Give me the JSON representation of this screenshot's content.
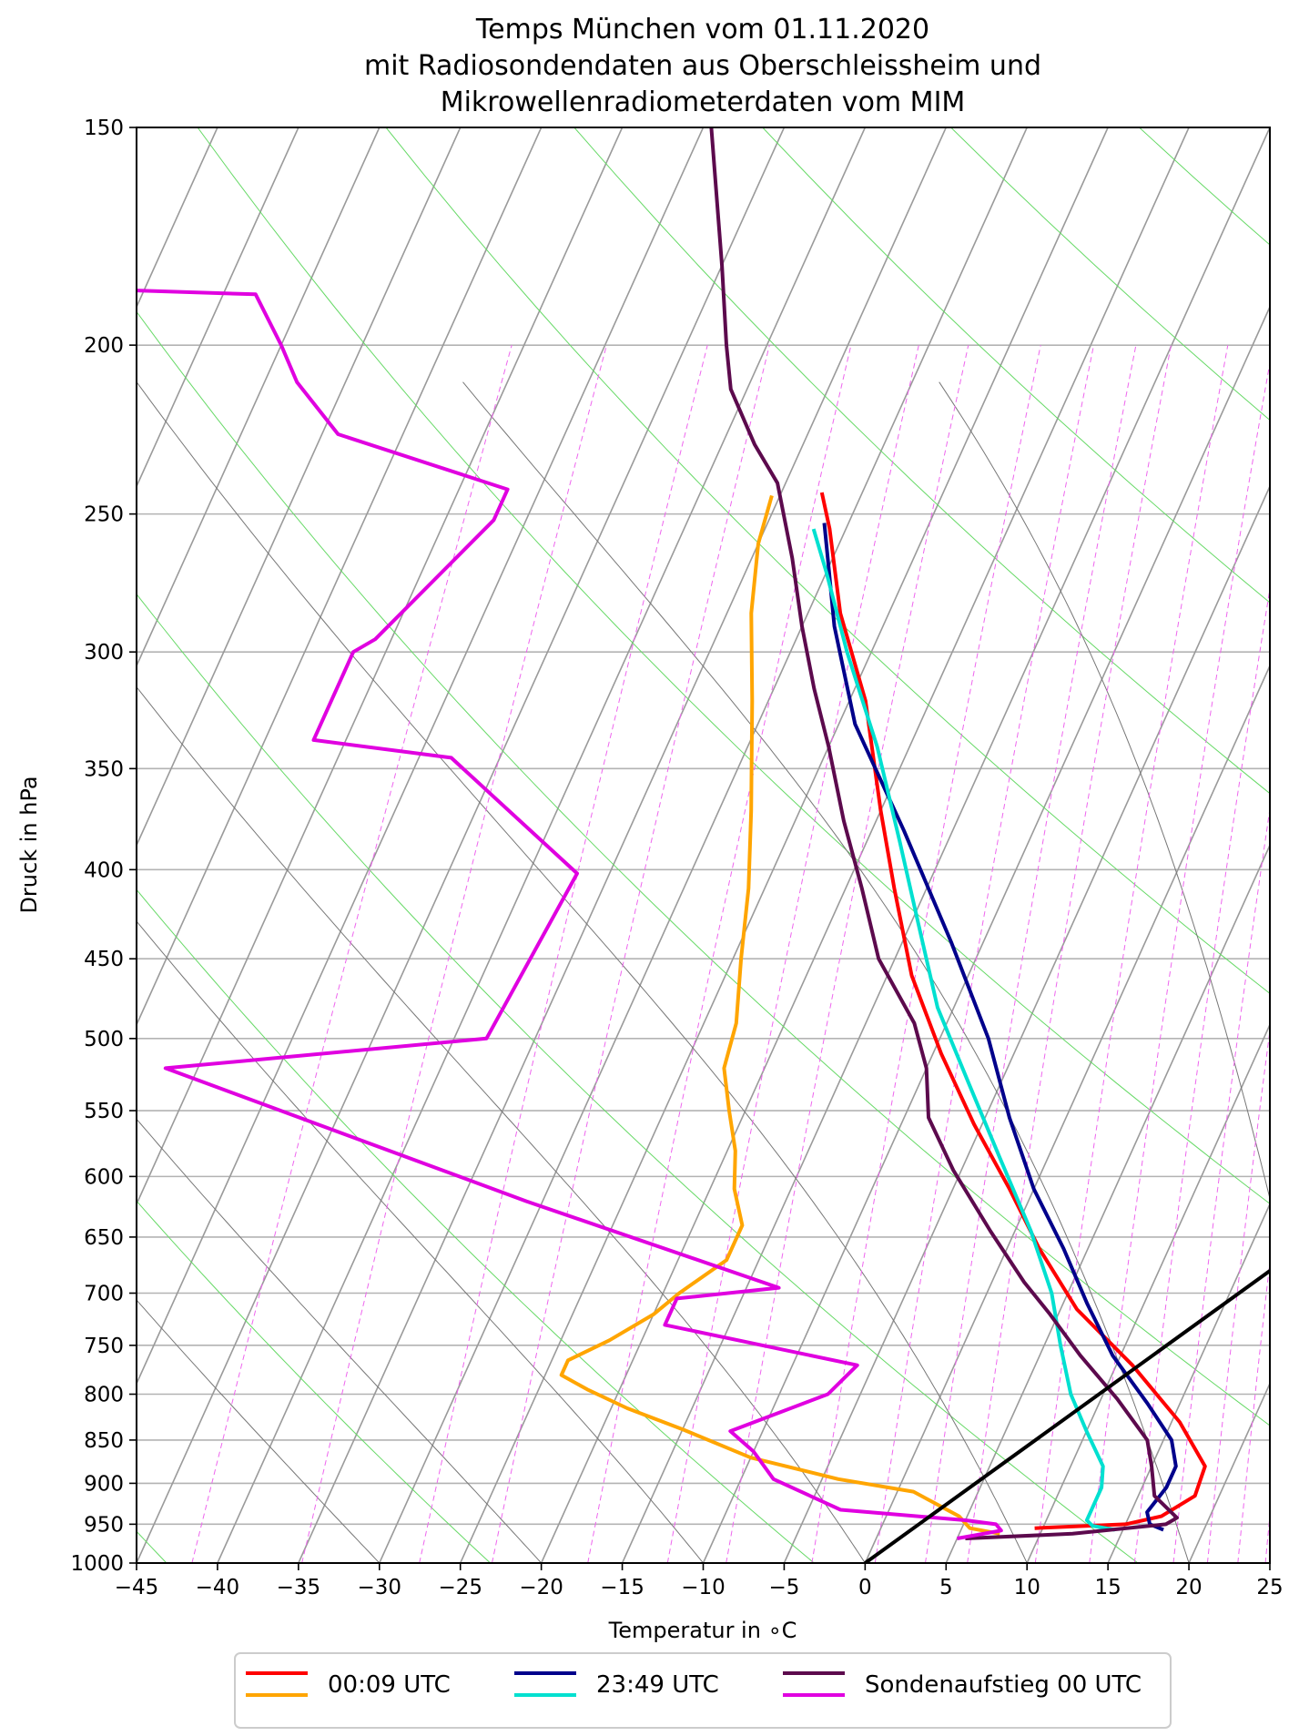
{
  "chart_data": {
    "type": "line",
    "subtype": "skew-t-log-p",
    "title_lines": [
      "Temps München vom 01.11.2020",
      "mit Radiosondendaten aus Oberschleissheim und",
      "Mikrowellenradiometerdaten vom MIM"
    ],
    "xlabel": "Temperatur in ∘C",
    "ylabel": "Druck in hPa",
    "xlim": [
      -45,
      25
    ],
    "ylim": [
      1000,
      150
    ],
    "y_scale": "log",
    "grid": true,
    "x_ticks": [
      "−45",
      "−40",
      "−35",
      "−30",
      "−25",
      "−20",
      "−15",
      "−10",
      "−5",
      "0",
      "5",
      "10",
      "15",
      "20",
      "25"
    ],
    "y_ticks": [
      "150",
      "200",
      "250",
      "300",
      "350",
      "400",
      "450",
      "500",
      "550",
      "600",
      "650",
      "700",
      "750",
      "800",
      "850",
      "900",
      "950",
      "1000"
    ],
    "legend": {
      "placement": "bottom-center",
      "entries": [
        {
          "label": "00:09 UTC",
          "colors": [
            "#ff0000",
            "#ffa500"
          ]
        },
        {
          "label": "23:49 UTC",
          "colors": [
            "#00008b",
            "#00e0d0"
          ]
        },
        {
          "label": "Sondenaufstieg 00 UTC",
          "colors": [
            "#5c0a4d",
            "#e000e0"
          ]
        }
      ]
    },
    "series": [
      {
        "color": "#ff0000",
        "points": [
          [
            9.5,
            955
          ],
          [
            15,
            950
          ],
          [
            17,
            940
          ],
          [
            18.5,
            915
          ],
          [
            18.3,
            880
          ],
          [
            15.5,
            830
          ],
          [
            11,
            770
          ],
          [
            6,
            715
          ],
          [
            2,
            660
          ],
          [
            -1.5,
            610
          ],
          [
            -5.5,
            560
          ],
          [
            -9.5,
            510
          ],
          [
            -13.5,
            460
          ],
          [
            -17,
            410
          ],
          [
            -20,
            370
          ],
          [
            -24,
            320
          ],
          [
            -28,
            285
          ],
          [
            -31,
            255
          ],
          [
            -32.5,
            243
          ]
        ]
      },
      {
        "color": "#ffa500",
        "points": [
          [
            7.5,
            962
          ],
          [
            5.5,
            955
          ],
          [
            4.5,
            940
          ],
          [
            1,
            910
          ],
          [
            -4,
            895
          ],
          [
            -10,
            870
          ],
          [
            -15,
            838
          ],
          [
            -19,
            815
          ],
          [
            -22,
            795
          ],
          [
            -24,
            780
          ],
          [
            -24,
            765
          ],
          [
            -22,
            745
          ],
          [
            -20,
            720
          ],
          [
            -19,
            700
          ],
          [
            -17,
            670
          ],
          [
            -17,
            640
          ],
          [
            -18.5,
            610
          ],
          [
            -19.5,
            580
          ],
          [
            -21,
            550
          ],
          [
            -22.5,
            520
          ],
          [
            -23,
            490
          ],
          [
            -24.5,
            450
          ],
          [
            -26,
            410
          ],
          [
            -28,
            370
          ],
          [
            -31,
            320
          ],
          [
            -33.5,
            285
          ],
          [
            -35,
            260
          ],
          [
            -35.5,
            244
          ]
        ]
      },
      {
        "color": "#00008b",
        "points": [
          [
            17.5,
            957
          ],
          [
            16.5,
            950
          ],
          [
            16,
            935
          ],
          [
            16.5,
            905
          ],
          [
            16.5,
            880
          ],
          [
            15.5,
            850
          ],
          [
            13,
            810
          ],
          [
            9.5,
            760
          ],
          [
            6.5,
            710
          ],
          [
            3.5,
            660
          ],
          [
            0,
            610
          ],
          [
            -3.5,
            555
          ],
          [
            -7,
            500
          ],
          [
            -12,
            440
          ],
          [
            -18,
            380
          ],
          [
            -24,
            330
          ],
          [
            -28,
            290
          ],
          [
            -30.5,
            263
          ],
          [
            -31.5,
            253
          ]
        ]
      },
      {
        "color": "#00e0d0",
        "points": [
          [
            14.5,
            957
          ],
          [
            13,
            952
          ],
          [
            12.5,
            945
          ],
          [
            12.5,
            930
          ],
          [
            12.5,
            905
          ],
          [
            12,
            880
          ],
          [
            10,
            840
          ],
          [
            8,
            800
          ],
          [
            6,
            750
          ],
          [
            4,
            700
          ],
          [
            1,
            645
          ],
          [
            -3,
            585
          ],
          [
            -7,
            530
          ],
          [
            -11,
            480
          ],
          [
            -14.5,
            430
          ],
          [
            -18,
            385
          ],
          [
            -22,
            340
          ],
          [
            -26.5,
            300
          ],
          [
            -30,
            270
          ],
          [
            -32,
            255
          ]
        ]
      },
      {
        "color": "#5c0a4d",
        "points": [
          [
            5.5,
            968
          ],
          [
            12,
            962
          ],
          [
            17.5,
            950
          ],
          [
            18,
            942
          ],
          [
            16,
            915
          ],
          [
            15,
            880
          ],
          [
            14,
            850
          ],
          [
            11,
            805
          ],
          [
            7.5,
            760
          ],
          [
            4.5,
            720
          ],
          [
            2,
            690
          ],
          [
            -1.5,
            645
          ],
          [
            -5.5,
            595
          ],
          [
            -8.5,
            555
          ],
          [
            -10,
            520
          ],
          [
            -12,
            490
          ],
          [
            -16,
            450
          ],
          [
            -19,
            410
          ],
          [
            -22,
            375
          ],
          [
            -25,
            340
          ],
          [
            -27.5,
            315
          ],
          [
            -30,
            290
          ],
          [
            -32.5,
            265
          ],
          [
            -35.5,
            240
          ],
          [
            -38,
            228
          ],
          [
            -41,
            212
          ],
          [
            -42.5,
            200
          ],
          [
            -45,
            180
          ],
          [
            -49.5,
            150
          ]
        ]
      },
      {
        "color": "#e000e0",
        "points": [
          [
            5,
            968
          ],
          [
            7.5,
            958
          ],
          [
            7,
            950
          ],
          [
            5,
            945
          ],
          [
            -3,
            932
          ],
          [
            -8,
            895
          ],
          [
            -10,
            863
          ],
          [
            -12,
            840
          ],
          [
            -7,
            800
          ],
          [
            -6,
            770
          ],
          [
            -19,
            730
          ],
          [
            -19,
            705
          ],
          [
            -13,
            695
          ],
          [
            -31,
            620
          ],
          [
            -57,
            520
          ],
          [
            -38,
            500
          ],
          [
            -37,
            402
          ],
          [
            -48,
            345
          ],
          [
            -57,
            337
          ],
          [
            -57,
            300
          ],
          [
            -56,
            295
          ],
          [
            -52,
            252
          ],
          [
            -52,
            242
          ],
          [
            -64,
            225
          ],
          [
            -68,
            210
          ],
          [
            -70,
            200
          ],
          [
            -73,
            187
          ],
          [
            -81,
            186
          ]
        ]
      },
      {
        "color": "#000000",
        "points": [
          [
            0,
            1000
          ],
          [
            40,
            400
          ]
        ]
      }
    ]
  }
}
